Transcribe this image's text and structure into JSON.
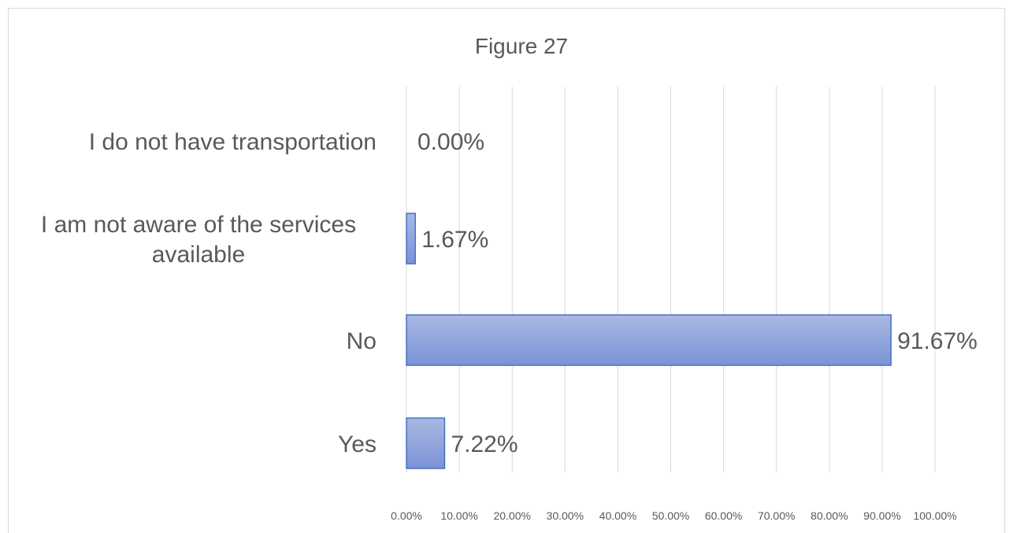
{
  "chart_data": {
    "type": "bar",
    "orientation": "horizontal",
    "title": "Figure 27",
    "categories": [
      "I do not have transportation",
      "I am not aware of the services available",
      "No",
      "Yes"
    ],
    "values": [
      0.0,
      1.67,
      91.67,
      7.22
    ],
    "data_labels": [
      "0.00%",
      "1.67%",
      "91.67%",
      "7.22%"
    ],
    "xlim": [
      0,
      100
    ],
    "x_ticks": [
      "0.00%",
      "10.00%",
      "20.00%",
      "30.00%",
      "40.00%",
      "50.00%",
      "60.00%",
      "70.00%",
      "80.00%",
      "90.00%",
      "100.00%"
    ],
    "grid": true,
    "legend": false,
    "colors": {
      "bar_fill_top": "#a9b8e2",
      "bar_fill_bottom": "#7b93d6",
      "bar_stroke": "#4472c4",
      "gridline": "#d9d9d9",
      "text": "#595959"
    }
  }
}
